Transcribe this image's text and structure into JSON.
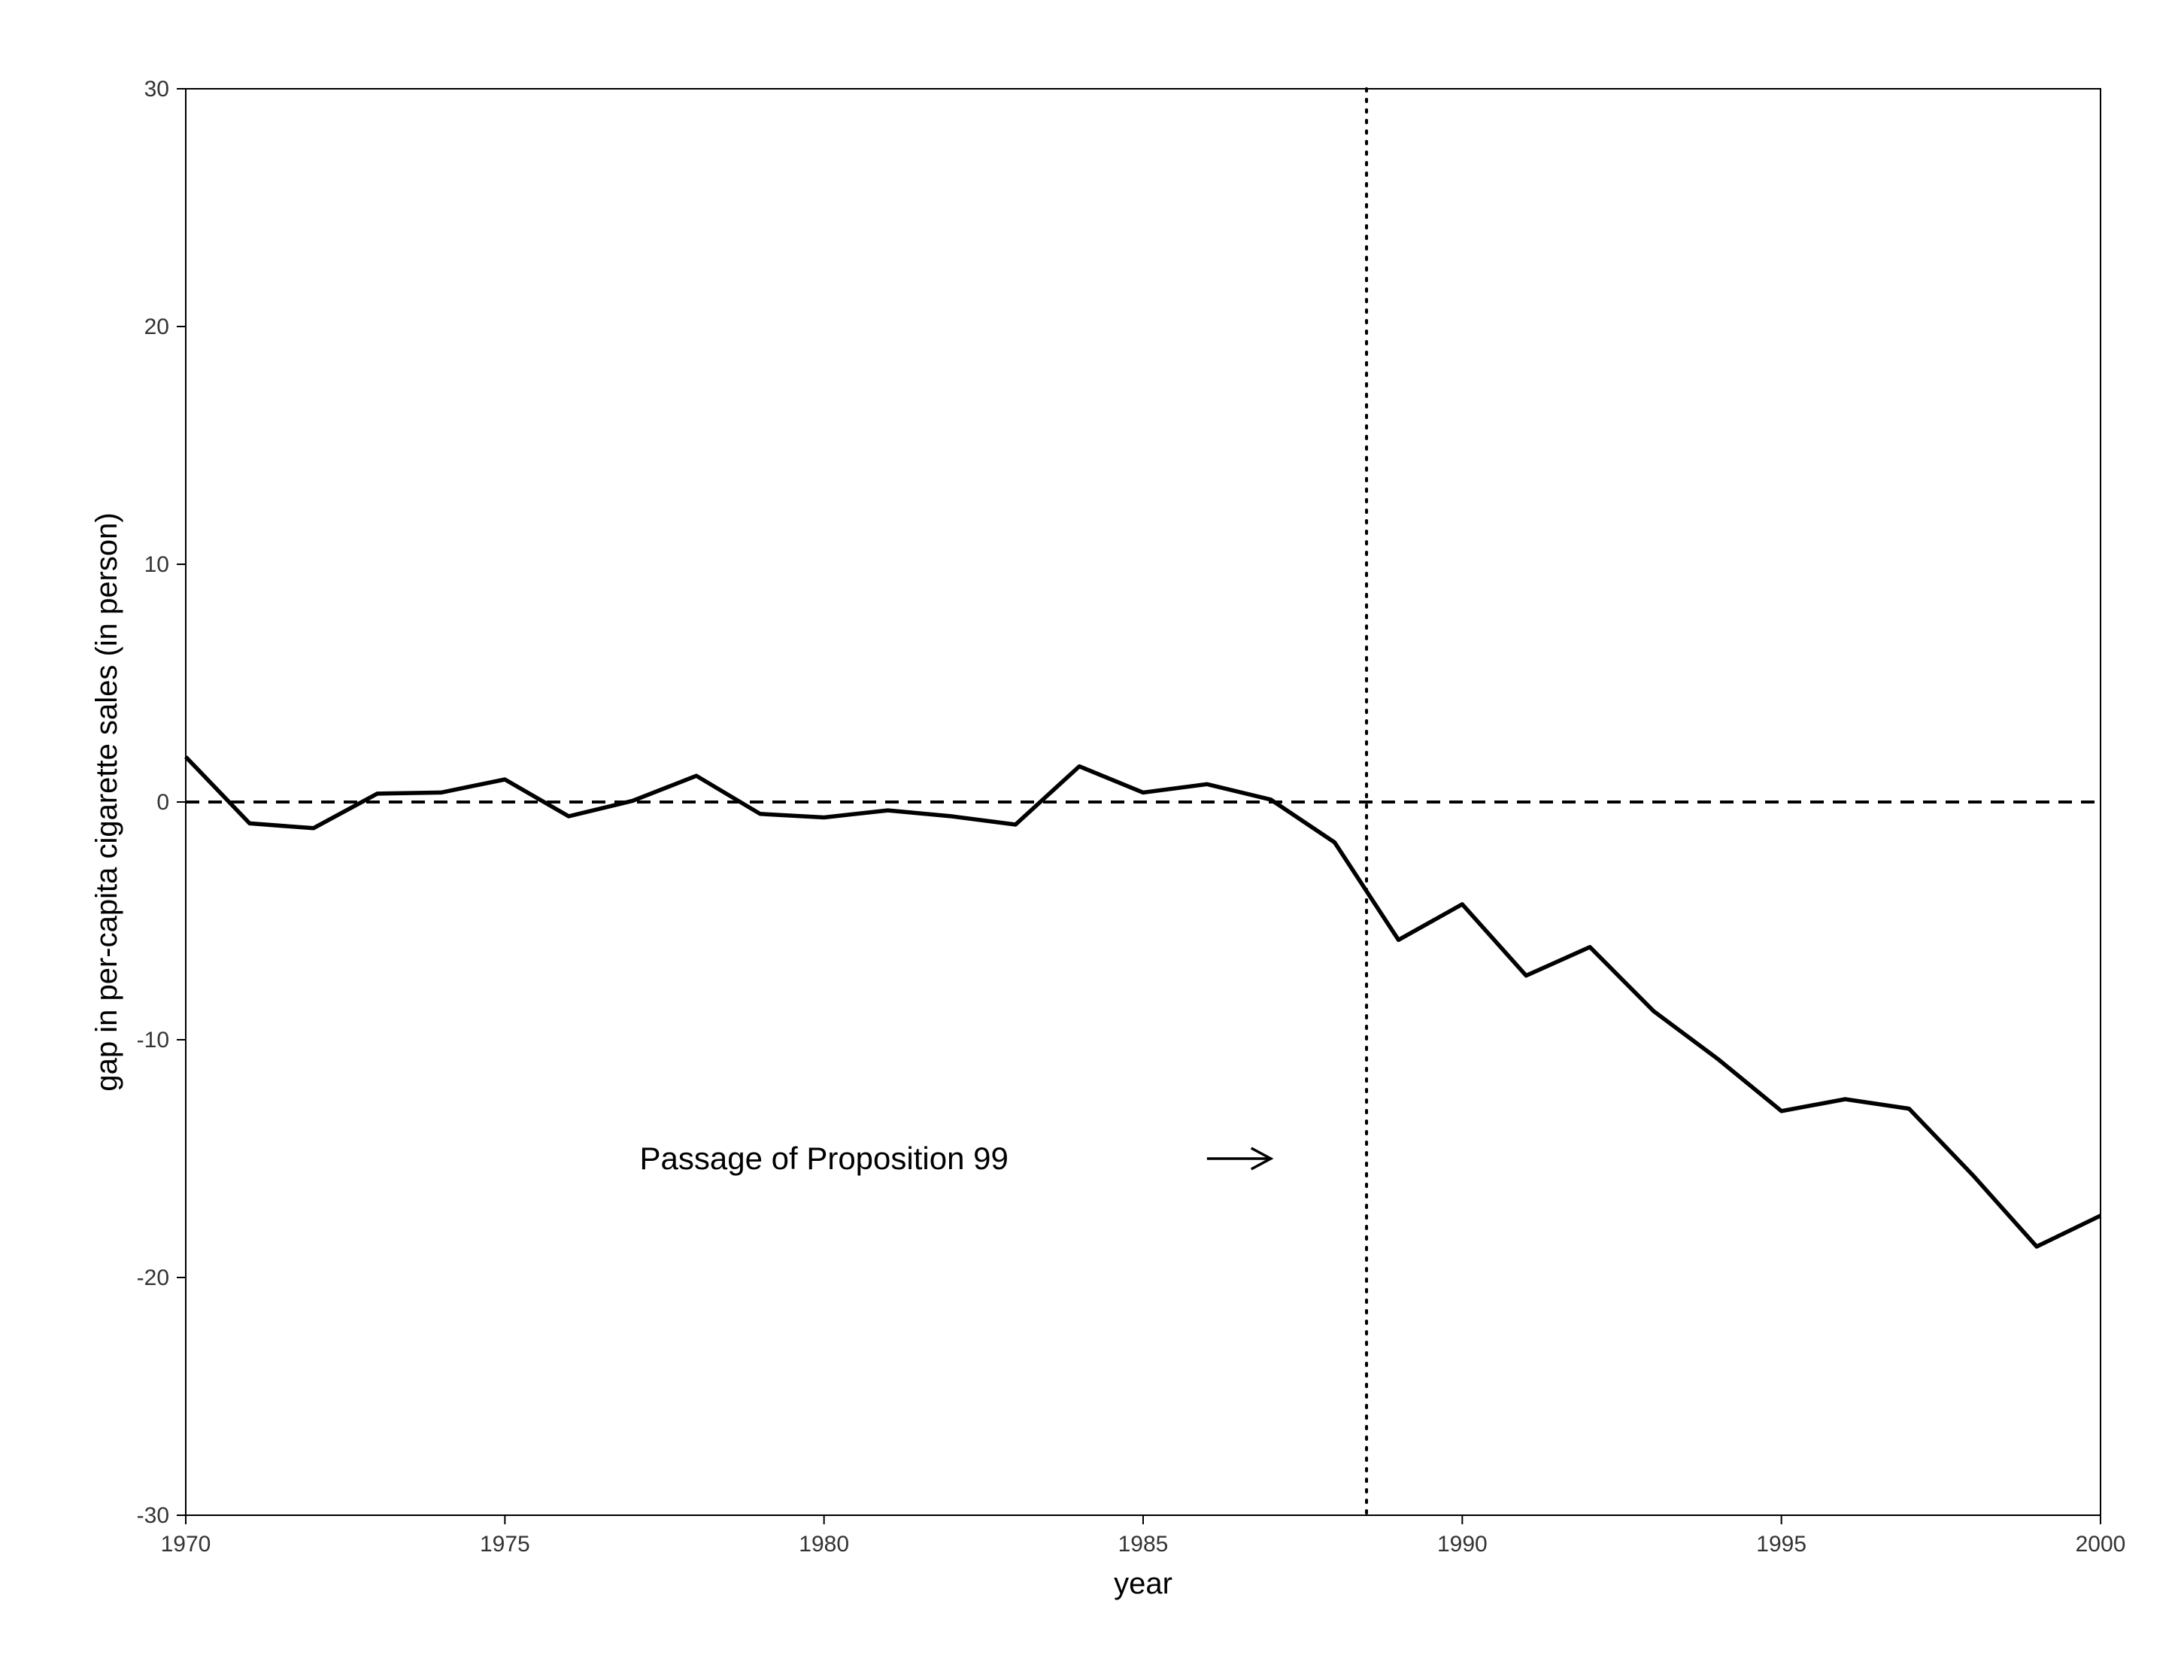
{
  "chart_data": {
    "type": "line",
    "title": "",
    "xlabel": "year",
    "ylabel": "gap in per-capita cigarette sales (in person)",
    "xlim": [
      1970,
      2000
    ],
    "ylim": [
      -30,
      30
    ],
    "x_ticks": [
      1970,
      1975,
      1980,
      1985,
      1990,
      1995,
      2000
    ],
    "y_ticks": [
      -30,
      -20,
      -10,
      0,
      10,
      20,
      30
    ],
    "grid": false,
    "x": [
      1970,
      1971,
      1972,
      1973,
      1974,
      1975,
      1976,
      1977,
      1978,
      1979,
      1980,
      1981,
      1982,
      1983,
      1984,
      1985,
      1986,
      1987,
      1988,
      1989,
      1990,
      1991,
      1992,
      1993,
      1994,
      1995,
      1996,
      1997,
      1998,
      1999,
      2000
    ],
    "series": [
      {
        "values": [
          1.9,
          -0.9,
          -1.1,
          0.35,
          0.4,
          0.95,
          -0.6,
          0.05,
          1.1,
          -0.5,
          -0.65,
          -0.35,
          -0.6,
          -0.95,
          1.5,
          0.4,
          0.75,
          0.1,
          -1.7,
          -5.8,
          -4.3,
          -7.3,
          -6.1,
          -8.8,
          -10.8,
          -13.0,
          -12.5,
          -12.9,
          -15.7,
          -18.7,
          -17.4
        ],
        "color": "#000000"
      }
    ],
    "reference_lines": [
      {
        "orientation": "horizontal",
        "value": 0,
        "style": "dashed"
      },
      {
        "orientation": "vertical",
        "value": 1988.5,
        "style": "dotted"
      }
    ],
    "annotations": [
      {
        "text": "Passage of Proposition 99",
        "x": 1980,
        "y": -15,
        "arrow": true,
        "arrow_from_x": 1986,
        "arrow_to_x": 1987,
        "arrow_y": -15
      }
    ]
  }
}
